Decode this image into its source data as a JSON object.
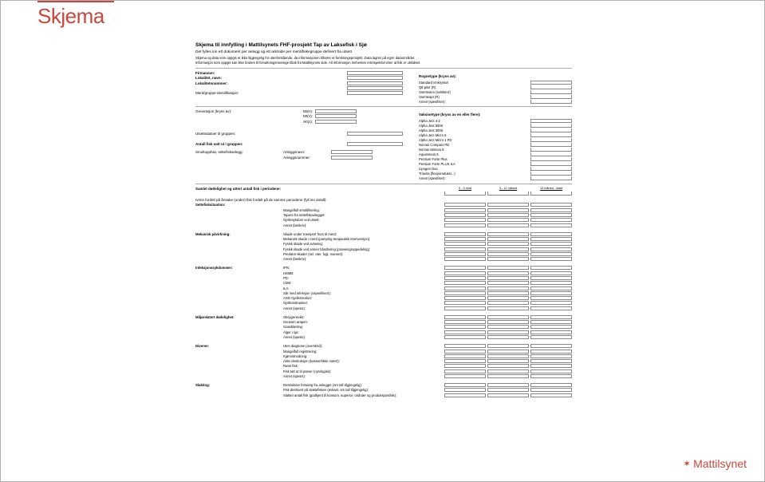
{
  "title": "Skjema",
  "brand": "Mattilsynet",
  "doc": {
    "heading": "Skjema til innfylling i Mattilsynets FHF-prosjekt Tap av Laksefisk i Sjø",
    "sub": "Det fylles inn ett dokument per anlegg og ett ark/side per merd/fiskegruppe definert fra utsett",
    "note1": "Skjema og data som oppgis er ikke tilgjengelig for utenforstående, da informasjonen tilhører et forskningsprosjekt. Data lagres på egne dataområder.",
    "note2": "Informasjon som oppgis kan ikke brukes til forvaltningsmessige tiltak fra Mattilsynets side. All informasjon innhentes retrospektivt etter at fisk er utslaktet."
  },
  "left_fields": [
    {
      "label": "Firmanavn:",
      "bold": true
    },
    {
      "label": "Lokalitet, navn:",
      "bold": true
    },
    {
      "label": "Lokalitetsnummer:",
      "bold": true
    },
    {
      "label": "",
      "bold": false
    },
    {
      "label": "Merd/gruppe-identifikasjon:",
      "bold": false
    }
  ],
  "right_block1": {
    "head": "Rognetype (kryss av):",
    "items": [
      "Standard innkrysset",
      "Qtl-pilot (R)",
      "Varmtvann (selektert)",
      "Varmtvapt (R)",
      "Annet (spesifiser):"
    ]
  },
  "generasjon": {
    "head": "Generasjon (kryss av):",
    "opts": [
      "N0(H):",
      "N0(V):",
      "N0(1):"
    ]
  },
  "vaksine": {
    "head": "Vaksinetype (kryss av en eller flere):",
    "items": [
      "Alpha Ject 4-2",
      "Alpha Jext 5000",
      "Alpha Jext 3000",
      "Alpha Ject Micro 6",
      "Alpha Ject Micro 1 PD",
      "Norvax Compact PD",
      "Norvax Minova 6",
      "AquaVacus 6",
      "Pentium Forte Plus",
      "Pentium Forte PLUS ILA",
      "Lipogen Duo",
      "Triovita (flexporoduksi...)",
      "Annet (spesifiser):"
    ]
  },
  "utsett": "Utsettsdatoer til gruppen:",
  "antall": "Antall fisk satt ut i gruppen:",
  "smolt": {
    "head": "Smoltopphav, settefiskanlegg:",
    "rows": [
      "Anleggsnavn:",
      "Anleggsnummer:"
    ]
  },
  "periods_head": "Samlet dødelighet og uttert antall fisk i periodene:",
  "periods": [
    "0 - 3 mnd",
    "3 - 12 måned",
    "12 måned - slakt"
  ],
  "fordelt": "Ivrinn fordelt på årstake (under) fisk fordelt på de samme periodene (fyll inn antall):",
  "cats": [
    {
      "label": "Settefisksituation:",
      "subs": [
        "",
        "Mangelfull smoltifisering:",
        "Tapere fra settefiskanlegget:",
        "Gjellesykdom ved utsett:",
        "Annet (beskriv):"
      ]
    },
    {
      "label": "Mekanisk påvirkning:",
      "subs": [
        "Skade under transport from til merd:",
        "Mekanisk skade i merd (pumping terapautisk intervensjon):",
        "Fysisk skade ved avlusing:",
        "Fysisk skade ved annen håndtering (prøveingruppedeling):",
        "Predator-skader (sel, oter, fugl, mannet):",
        "Annet (beskriv):"
      ]
    },
    {
      "label": "Infeksjonssykdommer:",
      "subs": [
        "IPN:",
        "HSMB:",
        "PD:",
        "CMS:",
        "ILA:",
        "Sår med infeksjon (uspesifisert):",
        "AGD Gjellemenber:",
        "Gjelleinstrasiner:",
        "Annet (spesis):"
      ]
    },
    {
      "label": "Miljørelatert dødelighet:",
      "subs": [
        "Oksygensvikt:",
        "Oxusom arapen:",
        "Gassblæring:",
        "Alger i sjø:",
        "Annet (spesis):"
      ]
    },
    {
      "label": "Diverse:",
      "subs": [
        "Uten diagnose (overskrid):",
        "Mangelfull registrering:",
        "Kjønnsmodning:",
        "Aktiv destruksjon (kassert/ikke notert):",
        "Rømt fisk:",
        "Fisk tatt ut til prøver (cytologisk):",
        "Annet (spesis):"
      ]
    },
    {
      "label": "Slakting:",
      "subs": [
        "Destruktive forsøing fra anlegget (om tall tilgjengelig):",
        "Fisk destruert på slaktefisken (avkast, om tall tilgjengelig):",
        "Slaktet antall fisk (godkjent til konsum, superior, ordinær og produksjonsfisk):"
      ]
    }
  ]
}
